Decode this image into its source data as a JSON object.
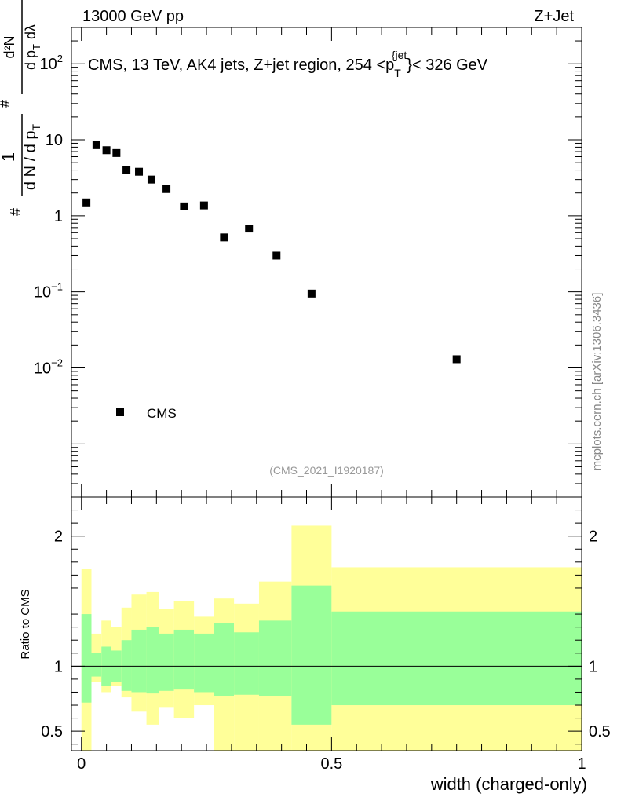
{
  "header": {
    "energy_label": "13000 GeV pp",
    "process_label": "Z+Jet"
  },
  "watermark": "mcplots.cern.ch [arXiv:1306.3436]",
  "chart_data": {
    "type": "scatter",
    "title": "CMS, 13 TeV, AK4 jets, Z+jet region, 254 <p_T^{jet}< 326 GeV",
    "title_parts": {
      "main": "CMS, 13 TeV, AK4 jets, Z+jet region, 254 <p",
      "sup": "{jet",
      "sub": "T",
      "tail": "}< 326 GeV"
    },
    "analysis_id": "(CMS_2021_I1920187)",
    "xlabel": "width (charged-only)",
    "ylabel_upper": {
      "num": "1",
      "den": "d N / d p",
      "den_sub": "T",
      "deriv_num": "d²N",
      "deriv_den": "d p",
      "deriv_den_sub": "T",
      "deriv_den_tail": "dλ",
      "hash": "#"
    },
    "ylabel_lower": "Ratio to CMS",
    "xlim": [
      -0.02,
      1.0
    ],
    "ylim_upper": [
      0.0002,
      300
    ],
    "ylim_lower": [
      0.35,
      2.3
    ],
    "x_ticks": [
      {
        "value": 0,
        "label": "0"
      },
      {
        "value": 0.5,
        "label": "0.5"
      },
      {
        "value": 1,
        "label": "1"
      }
    ],
    "y_ticks_upper": [
      {
        "value": 100,
        "base": "10",
        "exp": "2"
      },
      {
        "value": 10,
        "label": "10"
      },
      {
        "value": 1,
        "label": "1"
      },
      {
        "value": 0.1,
        "base": "10",
        "exp": "−1"
      },
      {
        "value": 0.01,
        "base": "10",
        "exp": "−2"
      }
    ],
    "y_ticks_lower": [
      {
        "value": 2,
        "label": "2"
      },
      {
        "value": 1,
        "label": "1"
      },
      {
        "value": 0.5,
        "label": "0.5"
      }
    ],
    "legend": {
      "label": "CMS",
      "position": "bottom-left"
    },
    "series": [
      {
        "name": "CMS",
        "x": [
          0.01,
          0.03,
          0.05,
          0.07,
          0.09,
          0.115,
          0.14,
          0.17,
          0.205,
          0.245,
          0.285,
          0.335,
          0.39,
          0.46,
          0.75
        ],
        "y": [
          1.5,
          8.5,
          7.3,
          6.7,
          4.0,
          3.8,
          3.0,
          2.25,
          1.33,
          1.37,
          0.52,
          0.68,
          0.3,
          0.095,
          0.013
        ]
      }
    ],
    "ratio_bands": {
      "edges": [
        0,
        0.02,
        0.04,
        0.06,
        0.08,
        0.1,
        0.13,
        0.155,
        0.185,
        0.225,
        0.265,
        0.305,
        0.355,
        0.42,
        0.5,
        1.0
      ],
      "stat_low": [
        0.72,
        0.92,
        0.85,
        0.88,
        0.81,
        0.8,
        0.79,
        0.81,
        0.82,
        0.8,
        0.77,
        0.78,
        0.77,
        0.55,
        0.7
      ],
      "stat_high": [
        1.4,
        1.1,
        1.15,
        1.12,
        1.2,
        1.28,
        1.3,
        1.25,
        1.28,
        1.25,
        1.33,
        1.26,
        1.35,
        1.62,
        1.42
      ],
      "total_low": [
        0.3,
        0.88,
        0.8,
        0.85,
        0.76,
        0.65,
        0.55,
        0.68,
        0.6,
        0.7,
        0.35,
        0.35,
        0.35,
        0.3,
        0.35
      ],
      "total_high": [
        1.75,
        1.25,
        1.35,
        1.3,
        1.45,
        1.55,
        1.57,
        1.44,
        1.5,
        1.38,
        1.52,
        1.48,
        1.65,
        2.08,
        1.76
      ]
    },
    "colors": {
      "total_band": "#ffff99",
      "stat_band": "#99ff99",
      "marker": "#000000",
      "axis": "#000000"
    }
  }
}
